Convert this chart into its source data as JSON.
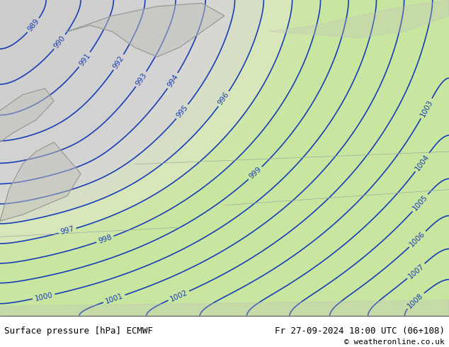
{
  "title_left": "Surface pressure [hPa] ECMWF",
  "title_right": "Fr 27-09-2024 18:00 UTC (06+108)",
  "copyright": "© weatheronline.co.uk",
  "bg_land_color": "#c8e6a0",
  "bg_sea_color_low": "#d8d8d8",
  "contour_color": "#1a3eb5",
  "contour_label_color": "#1a3eb5",
  "land_outline_color": "#a0a0a0",
  "bottom_bar_color": "#ffffff",
  "bottom_text_color": "#000000",
  "pressure_min": 988,
  "pressure_max": 1009,
  "pressure_step": 1,
  "figsize": [
    6.34,
    4.9
  ],
  "dpi": 100
}
